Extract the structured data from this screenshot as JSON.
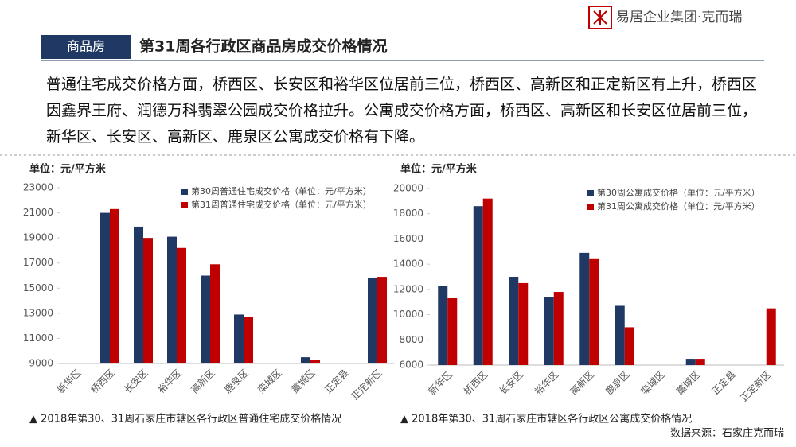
{
  "header": {
    "tag": "商品房",
    "title": "第31周各行政区商品房成交价格情况",
    "brand": "易居企业集团·克而瑞"
  },
  "paragraph": "普通住宅成交价格方面，桥西区、长安区和裕华区位居前三位，桥西区、高新区和正定新区有上升，桥西区因鑫界王府、润德万科翡翠公园成交价格拉升。公寓成交价格方面，桥西区、高新区和长安区位居前三位，新华区、长安区、高新区、鹿泉区公寓成交价格有下降。",
  "source": "数据来源：石家庄克而瑞",
  "chart_data": [
    {
      "type": "bar",
      "y_label": "单位：元/平方米",
      "caption": "▲ 2018年第30、31周石家庄市辖区各行政区普通住宅成交价格情况",
      "categories": [
        "新华区",
        "桥西区",
        "长安区",
        "裕华区",
        "高新区",
        "鹿泉区",
        "栾城区",
        "藁城区",
        "正定县",
        "正定新区"
      ],
      "series": [
        {
          "name": "第30周普通住宅成交价格（单位：元/平方米）",
          "color": "#1f3864",
          "values": [
            null,
            21000,
            19900,
            19100,
            16000,
            12900,
            null,
            9500,
            null,
            15800
          ]
        },
        {
          "name": "第31周普通住宅成交价格（单位：元/平方米）",
          "color": "#c00000",
          "values": [
            null,
            21300,
            19000,
            18200,
            16900,
            12700,
            null,
            9300,
            null,
            15900
          ]
        }
      ],
      "ylim": [
        9000,
        23000
      ],
      "yticks": [
        9000,
        11000,
        13000,
        15000,
        17000,
        19000,
        21000,
        23000
      ]
    },
    {
      "type": "bar",
      "y_label": "单位：元/平方米",
      "caption": "▲ 2018年第30、31周石家庄市辖区各行政区公寓成交价格情况",
      "categories": [
        "新华区",
        "桥西区",
        "长安区",
        "裕华区",
        "高新区",
        "鹿泉区",
        "栾城区",
        "藁城区",
        "正定县",
        "正定新区"
      ],
      "series": [
        {
          "name": "第30周公寓成交价格（单位：元/平方米）",
          "color": "#1f3864",
          "values": [
            12300,
            18600,
            13000,
            11400,
            14900,
            10700,
            null,
            6500,
            null,
            null
          ]
        },
        {
          "name": "第31周公寓成交价格（单位：元/平方米）",
          "color": "#c00000",
          "values": [
            11300,
            19200,
            12500,
            11800,
            14400,
            9000,
            null,
            6500,
            null,
            10500
          ]
        }
      ],
      "ylim": [
        6000,
        20000
      ],
      "yticks": [
        6000,
        8000,
        10000,
        12000,
        14000,
        16000,
        18000,
        20000
      ]
    }
  ]
}
